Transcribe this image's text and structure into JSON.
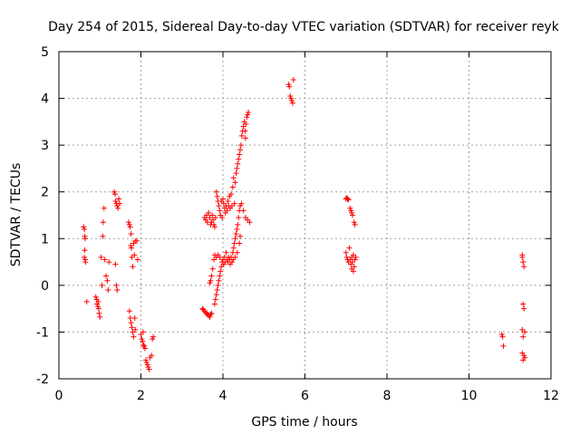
{
  "chart_data": {
    "type": "scatter",
    "title": "Day 254 of 2015, Sidereal Day-to-day VTEC variation (SDTVAR) for receiver reyk",
    "xlabel": "GPS time / hours",
    "ylabel": "SDTVAR / TECUs",
    "xlim": [
      0,
      12
    ],
    "ylim": [
      -2,
      5
    ],
    "xticks": [
      0,
      2,
      4,
      6,
      8,
      10,
      12
    ],
    "yticks": [
      -2,
      -1,
      0,
      1,
      2,
      3,
      4,
      5
    ],
    "grid": true,
    "marker": "plus",
    "series_color": "#ff0000",
    "points": [
      [
        0.6,
        1.25
      ],
      [
        0.62,
        1.2
      ],
      [
        0.63,
        1.05
      ],
      [
        0.64,
        1.0
      ],
      [
        0.63,
        0.75
      ],
      [
        0.62,
        0.6
      ],
      [
        0.64,
        0.55
      ],
      [
        0.65,
        0.5
      ],
      [
        0.68,
        -0.35
      ],
      [
        0.9,
        -0.25
      ],
      [
        0.92,
        -0.3
      ],
      [
        0.93,
        -0.4
      ],
      [
        0.95,
        -0.45
      ],
      [
        0.97,
        -0.5
      ],
      [
        0.98,
        -0.6
      ],
      [
        1.0,
        -0.68
      ],
      [
        0.96,
        -0.35
      ],
      [
        1.03,
        0.6
      ],
      [
        1.05,
        0.0
      ],
      [
        1.07,
        1.05
      ],
      [
        1.08,
        1.35
      ],
      [
        1.1,
        1.65
      ],
      [
        1.12,
        0.55
      ],
      [
        1.15,
        0.2
      ],
      [
        1.18,
        0.1
      ],
      [
        1.2,
        -0.1
      ],
      [
        1.22,
        0.5
      ],
      [
        1.35,
        2.0
      ],
      [
        1.37,
        1.95
      ],
      [
        1.38,
        1.8
      ],
      [
        1.4,
        1.75
      ],
      [
        1.42,
        1.7
      ],
      [
        1.44,
        1.65
      ],
      [
        1.46,
        1.85
      ],
      [
        1.48,
        1.75
      ],
      [
        1.38,
        0.45
      ],
      [
        1.4,
        0.0
      ],
      [
        1.42,
        -0.1
      ],
      [
        1.7,
        1.35
      ],
      [
        1.72,
        1.3
      ],
      [
        1.74,
        1.25
      ],
      [
        1.76,
        1.1
      ],
      [
        1.75,
        0.85
      ],
      [
        1.77,
        0.8
      ],
      [
        1.78,
        0.6
      ],
      [
        1.8,
        0.4
      ],
      [
        1.82,
        0.9
      ],
      [
        1.84,
        0.65
      ],
      [
        1.86,
        0.95
      ],
      [
        1.9,
        0.95
      ],
      [
        1.92,
        0.55
      ],
      [
        1.72,
        -0.55
      ],
      [
        1.74,
        -0.7
      ],
      [
        1.76,
        -0.8
      ],
      [
        1.78,
        -0.9
      ],
      [
        1.8,
        -1.0
      ],
      [
        1.82,
        -1.1
      ],
      [
        1.85,
        -0.7
      ],
      [
        1.86,
        -0.95
      ],
      [
        2.0,
        -1.05
      ],
      [
        2.02,
        -1.15
      ],
      [
        2.04,
        -1.2
      ],
      [
        2.06,
        -1.28
      ],
      [
        2.08,
        -1.3
      ],
      [
        2.1,
        -1.35
      ],
      [
        2.05,
        -1.0
      ],
      [
        2.12,
        -1.6
      ],
      [
        2.14,
        -1.65
      ],
      [
        2.16,
        -1.7
      ],
      [
        2.18,
        -1.75
      ],
      [
        2.2,
        -1.8
      ],
      [
        2.22,
        -1.55
      ],
      [
        2.26,
        -1.5
      ],
      [
        2.3,
        -1.1
      ],
      [
        2.28,
        -1.15
      ],
      [
        3.55,
        1.45
      ],
      [
        3.58,
        1.4
      ],
      [
        3.6,
        1.5
      ],
      [
        3.62,
        1.35
      ],
      [
        3.65,
        1.55
      ],
      [
        3.68,
        1.45
      ],
      [
        3.7,
        1.3
      ],
      [
        3.72,
        1.35
      ],
      [
        3.74,
        1.5
      ],
      [
        3.76,
        1.4
      ],
      [
        3.78,
        1.3
      ],
      [
        3.8,
        1.25
      ],
      [
        3.82,
        1.45
      ],
      [
        3.84,
        2.0
      ],
      [
        3.86,
        1.9
      ],
      [
        3.88,
        1.8
      ],
      [
        3.9,
        1.7
      ],
      [
        3.92,
        1.6
      ],
      [
        3.94,
        1.5
      ],
      [
        3.96,
        1.8
      ],
      [
        3.98,
        1.45
      ],
      [
        4.0,
        1.85
      ],
      [
        4.02,
        1.75
      ],
      [
        4.04,
        1.65
      ],
      [
        4.06,
        1.55
      ],
      [
        4.08,
        1.7
      ],
      [
        4.1,
        1.6
      ],
      [
        4.12,
        1.8
      ],
      [
        4.14,
        1.7
      ],
      [
        4.16,
        1.9
      ],
      [
        4.18,
        1.65
      ],
      [
        4.2,
        1.95
      ],
      [
        4.22,
        1.7
      ],
      [
        4.24,
        2.1
      ],
      [
        4.26,
        2.3
      ],
      [
        4.28,
        1.75
      ],
      [
        4.3,
        2.2
      ],
      [
        4.32,
        2.4
      ],
      [
        4.34,
        2.5
      ],
      [
        4.36,
        2.6
      ],
      [
        4.38,
        2.7
      ],
      [
        4.4,
        2.8
      ],
      [
        4.42,
        2.9
      ],
      [
        4.44,
        3.0
      ],
      [
        4.46,
        3.2
      ],
      [
        4.48,
        3.3
      ],
      [
        4.5,
        3.4
      ],
      [
        4.52,
        3.5
      ],
      [
        4.54,
        3.3
      ],
      [
        4.56,
        3.45
      ],
      [
        4.58,
        3.6
      ],
      [
        4.6,
        3.65
      ],
      [
        4.62,
        3.7
      ],
      [
        4.55,
        3.15
      ],
      [
        4.45,
        1.75
      ],
      [
        4.5,
        1.6
      ],
      [
        4.55,
        1.45
      ],
      [
        4.6,
        1.4
      ],
      [
        4.65,
        1.35
      ],
      [
        3.5,
        -0.5
      ],
      [
        3.52,
        -0.52
      ],
      [
        3.55,
        -0.55
      ],
      [
        3.58,
        -0.58
      ],
      [
        3.6,
        -0.6
      ],
      [
        3.62,
        -0.62
      ],
      [
        3.65,
        -0.65
      ],
      [
        3.68,
        -0.68
      ],
      [
        3.7,
        -0.62
      ],
      [
        3.72,
        -0.6
      ],
      [
        3.68,
        0.05
      ],
      [
        3.7,
        0.1
      ],
      [
        3.72,
        0.2
      ],
      [
        3.75,
        0.35
      ],
      [
        3.78,
        0.55
      ],
      [
        3.8,
        0.65
      ],
      [
        3.84,
        0.6
      ],
      [
        3.88,
        0.65
      ],
      [
        3.92,
        0.6
      ],
      [
        3.8,
        -0.4
      ],
      [
        3.82,
        -0.3
      ],
      [
        3.84,
        -0.2
      ],
      [
        3.86,
        -0.1
      ],
      [
        3.88,
        0.0
      ],
      [
        3.9,
        0.1
      ],
      [
        3.92,
        0.2
      ],
      [
        3.94,
        0.3
      ],
      [
        3.96,
        0.4
      ],
      [
        3.98,
        0.5
      ],
      [
        4.0,
        0.55
      ],
      [
        4.02,
        0.45
      ],
      [
        4.04,
        0.6
      ],
      [
        4.06,
        0.5
      ],
      [
        4.08,
        0.7
      ],
      [
        4.1,
        0.55
      ],
      [
        4.12,
        0.5
      ],
      [
        4.14,
        0.6
      ],
      [
        4.16,
        0.55
      ],
      [
        4.18,
        0.45
      ],
      [
        4.2,
        0.6
      ],
      [
        4.22,
        0.5
      ],
      [
        4.24,
        0.7
      ],
      [
        4.26,
        0.8
      ],
      [
        4.28,
        0.9
      ],
      [
        4.3,
        1.0
      ],
      [
        4.32,
        1.1
      ],
      [
        4.34,
        1.2
      ],
      [
        4.36,
        1.3
      ],
      [
        4.38,
        1.45
      ],
      [
        4.4,
        1.6
      ],
      [
        4.42,
        1.7
      ],
      [
        4.25,
        0.55
      ],
      [
        4.3,
        0.6
      ],
      [
        4.35,
        0.7
      ],
      [
        4.4,
        0.9
      ],
      [
        4.42,
        1.05
      ],
      [
        5.6,
        4.3
      ],
      [
        5.62,
        4.25
      ],
      [
        5.64,
        4.05
      ],
      [
        5.66,
        4.0
      ],
      [
        5.68,
        3.95
      ],
      [
        5.7,
        3.9
      ],
      [
        5.72,
        4.4
      ],
      [
        7.0,
        1.85
      ],
      [
        7.02,
        1.87
      ],
      [
        7.04,
        1.85
      ],
      [
        7.06,
        1.83
      ],
      [
        7.1,
        1.65
      ],
      [
        7.12,
        1.6
      ],
      [
        7.14,
        1.55
      ],
      [
        7.16,
        1.5
      ],
      [
        7.2,
        1.35
      ],
      [
        7.22,
        1.3
      ],
      [
        7.0,
        0.7
      ],
      [
        7.02,
        0.6
      ],
      [
        7.04,
        0.55
      ],
      [
        7.06,
        0.5
      ],
      [
        7.08,
        0.8
      ],
      [
        7.1,
        0.55
      ],
      [
        7.12,
        0.45
      ],
      [
        7.14,
        0.6
      ],
      [
        7.16,
        0.5
      ],
      [
        7.18,
        0.65
      ],
      [
        7.2,
        0.4
      ],
      [
        7.22,
        0.55
      ],
      [
        7.24,
        0.6
      ],
      [
        7.14,
        0.35
      ],
      [
        7.18,
        0.3
      ],
      [
        10.8,
        -1.05
      ],
      [
        10.82,
        -1.1
      ],
      [
        10.84,
        -1.3
      ],
      [
        11.3,
        0.6
      ],
      [
        11.32,
        0.5
      ],
      [
        11.34,
        0.4
      ],
      [
        11.3,
        0.65
      ],
      [
        11.32,
        -0.4
      ],
      [
        11.34,
        -0.5
      ],
      [
        11.36,
        -1.0
      ],
      [
        11.32,
        -1.1
      ],
      [
        11.3,
        -0.95
      ],
      [
        11.34,
        -1.5
      ],
      [
        11.36,
        -1.55
      ],
      [
        11.32,
        -1.6
      ],
      [
        11.3,
        -1.45
      ]
    ]
  }
}
